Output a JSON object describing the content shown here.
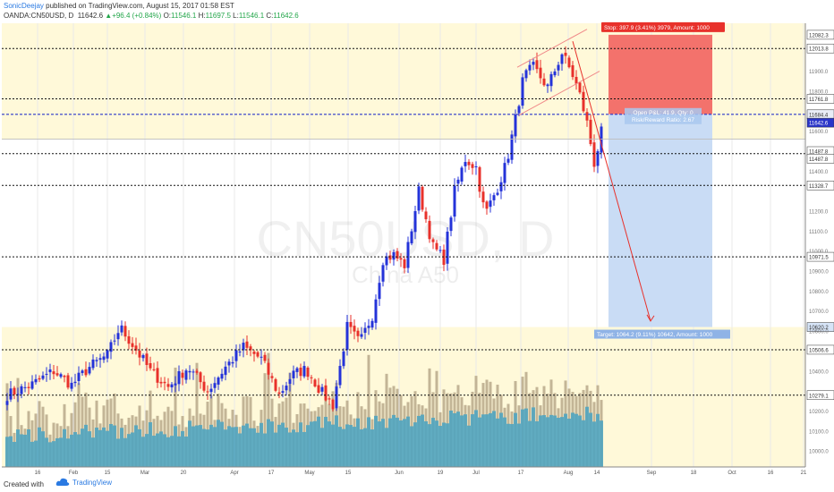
{
  "header": {
    "author": "SonicDeejay",
    "published": "published on TradingView.com, August 15, 2017 01:58 EST",
    "symbol": "OANDA:CN50USD, D",
    "last": "11642.6",
    "change": "+96.4 (+0.84%)",
    "o_label": "O:",
    "o_value": "11546.1",
    "h_label": "H:",
    "h_value": "11697.5",
    "l_label": "L:",
    "l_value": "11546.1",
    "c_label": "C:",
    "c_value": "11642.6"
  },
  "footer": {
    "created_with": "Created with",
    "brand": "TradingView"
  },
  "colors": {
    "up": "#2433d9",
    "down": "#e8312b",
    "band": "#fff9d9",
    "stop_zone": "#f3726c",
    "target_zone": "#c9dcf5",
    "volume": "#4aa3c2",
    "volume_old": "#b9a98a"
  },
  "chart_data": {
    "type": "candlestick",
    "watermark": {
      "symbol": "CN50USD, D",
      "name": "China A50"
    },
    "x_ticks": [
      "16",
      "Feb",
      "15",
      "Mar",
      "20",
      "Apr",
      "17",
      "May",
      "15",
      "Jun",
      "19",
      "Jul",
      "17",
      "Aug",
      "14",
      "Sep",
      "18",
      "Oct",
      "16",
      "21"
    ],
    "price_labels": [
      "12082.3",
      "12013.8",
      "11900.0",
      "11800.0",
      "11761.8",
      "11684.4",
      "11642.6",
      "11600.0",
      "11487.8",
      "11487.8",
      "11400.0",
      "11328.7",
      "11200.0",
      "11100.0",
      "11000.0",
      "10971.5",
      "10900.0",
      "10800.0",
      "10700.0",
      "10620.2",
      "10600.0",
      "10506.6",
      "10400.0",
      "10279.1",
      "10200.0",
      "10100.0",
      "10000.0"
    ],
    "levels": [
      12013.8,
      11761.8,
      11487.8,
      11328.7,
      10971.5,
      10506.6,
      10279.1
    ],
    "ylim": [
      9920,
      12140
    ],
    "position": {
      "stop_text": "Stop: 397.9 (3.41%) 3979, Amount: 1000",
      "open_text_1": "Open P&L: 41.9, Qty: 0",
      "open_text_2": "Risk/Reward Ratio: 2.67",
      "target_text": "Target: 1064.2 (9.11%) 10642, Amount: 1000",
      "stop_price": 12082.3,
      "entry_price": 11684.4,
      "target_price": 10620.2
    }
  }
}
